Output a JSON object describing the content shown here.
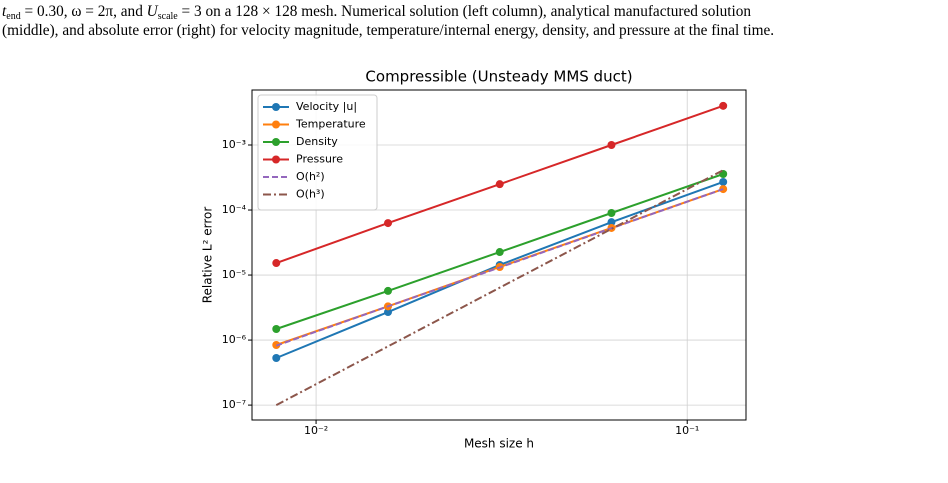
{
  "caption": {
    "lines": [
      [
        "t",
        "end",
        " = 0.30, ω = 2π, and ",
        "U",
        "scale",
        " = 3 on a 128 × 128 mesh. Numerical solution (left column), analytical manufactured solution"
      ],
      [
        "(middle), and absolute error (right) for velocity magnitude, temperature/internal energy, density, and pressure at the final time."
      ]
    ]
  },
  "chart_data": {
    "type": "line",
    "title": "Compressible (Unsteady MMS duct)",
    "x_label": "Mesh size h",
    "y_label": "Relative L² error",
    "x": [
      0.0078125,
      0.015625,
      0.03125,
      0.0625,
      0.125
    ],
    "log_x": true,
    "log_y": true,
    "grid": true,
    "legend": "upper left",
    "xlim": [
      0.00672,
      0.144
    ],
    "ylim": [
      5.9e-08,
      0.00701
    ],
    "xticks": [
      {
        "value": 0.01,
        "label": "10⁻²"
      },
      {
        "value": 0.1,
        "label": "10⁻¹"
      }
    ],
    "yticks": [
      {
        "value": 1e-07,
        "label": "10⁻⁷"
      },
      {
        "value": 1e-06,
        "label": "10⁻⁶"
      },
      {
        "value": 1e-05,
        "label": "10⁻⁵"
      },
      {
        "value": 0.0001,
        "label": "10⁻⁴"
      },
      {
        "value": 0.001,
        "label": "10⁻³"
      }
    ],
    "series": [
      {
        "name": "Velocity |u|",
        "color": "#1f77b4",
        "style": "solid",
        "marker": true,
        "values": [
          5.3e-07,
          2.7e-06,
          1.43e-05,
          6.5e-05,
          0.00027
        ]
      },
      {
        "name": "Temperature",
        "color": "#ff7f0e",
        "style": "solid",
        "marker": true,
        "values": [
          8.4e-07,
          3.3e-06,
          1.33e-05,
          5.3e-05,
          0.00021
        ]
      },
      {
        "name": "Density",
        "color": "#2ca02c",
        "style": "solid",
        "marker": true,
        "values": [
          1.48e-06,
          5.7e-06,
          2.26e-05,
          9e-05,
          0.000358
        ]
      },
      {
        "name": "Pressure",
        "color": "#d62728",
        "style": "solid",
        "marker": true,
        "values": [
          1.53e-05,
          6.3e-05,
          0.00025,
          0.001,
          0.004
        ]
      },
      {
        "name": "O(h²)",
        "color": "#9467bd",
        "style": "dashed",
        "marker": false,
        "values": [
          8.2e-07,
          3.3e-06,
          1.31e-05,
          5.25e-05,
          0.00021
        ]
      },
      {
        "name": "O(h³)",
        "color": "#8c564b",
        "style": "dashdot",
        "marker": false,
        "values": [
          1e-07,
          8e-07,
          6.4e-06,
          5.12e-05,
          0.00041
        ]
      }
    ]
  }
}
